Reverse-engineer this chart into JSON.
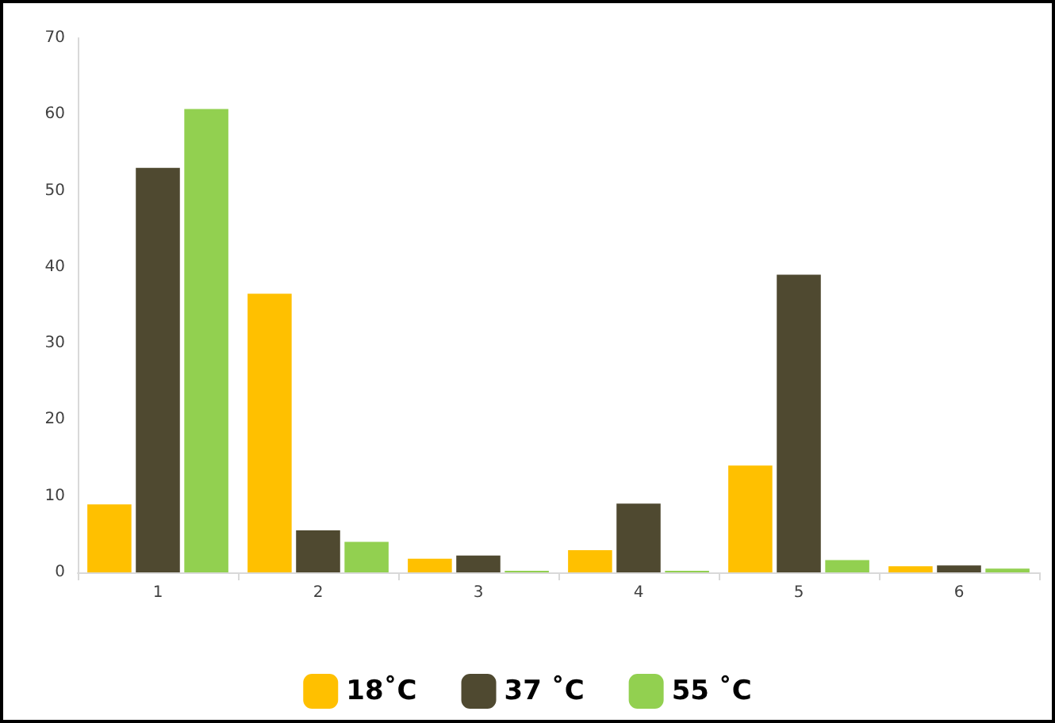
{
  "chart_data": {
    "type": "bar",
    "categories": [
      "1",
      "2",
      "3",
      "4",
      "5",
      "6"
    ],
    "series": [
      {
        "name": "18˚C",
        "color": "#ffc000",
        "values": [
          8.9,
          36.5,
          1.8,
          2.9,
          14,
          0.8
        ]
      },
      {
        "name": "37 ˚C",
        "color": "#4f4930",
        "values": [
          53,
          5.5,
          2.2,
          9,
          39,
          0.9
        ]
      },
      {
        "name": "55 ˚C",
        "color": "#92d050",
        "values": [
          60.7,
          4,
          0.2,
          0.2,
          1.6,
          0.5
        ]
      }
    ],
    "ylim": [
      0,
      70
    ],
    "yticks": [
      0,
      10,
      20,
      30,
      40,
      50,
      60,
      70
    ],
    "grid": false,
    "legend": "bottom"
  }
}
